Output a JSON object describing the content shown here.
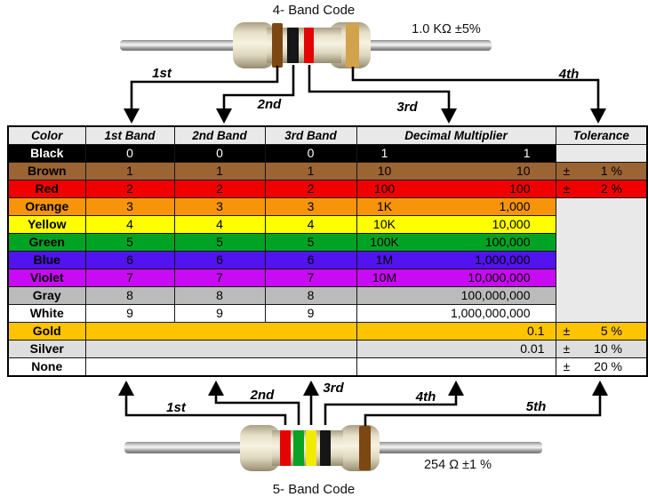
{
  "top": {
    "title": "4- Band Code",
    "value_label": "1.0 KΩ  ±5%",
    "band_names": [
      "brown",
      "black",
      "red",
      "gold"
    ],
    "arrow_labels": [
      "1st",
      "2nd",
      "3rd",
      "4th"
    ]
  },
  "bottom": {
    "title": "5- Band Code",
    "value_label": "254 Ω  ±1 %",
    "band_names": [
      "red",
      "green",
      "yellow",
      "black",
      "brown"
    ],
    "arrow_labels": [
      "1st",
      "2nd",
      "3rd",
      "4th",
      "5th"
    ]
  },
  "table": {
    "headers": [
      "Color",
      "1st Band",
      "2nd Band",
      "3rd Band",
      "Decimal Multiplier",
      "Tolerance"
    ],
    "rows": [
      {
        "name": "Black",
        "bg": "#000000",
        "fg": "#ffffff",
        "bands": [
          "0",
          "0",
          "0"
        ],
        "mult_abbr": "1",
        "mult_full": "1",
        "tolerance": {
          "kind": "empty"
        }
      },
      {
        "name": "Brown",
        "bg": "#9b6433",
        "fg": "#000000",
        "bands": [
          "1",
          "1",
          "1"
        ],
        "mult_abbr": "10",
        "mult_full": "10",
        "tolerance": {
          "kind": "value",
          "sign": "±",
          "value": "1 %"
        }
      },
      {
        "name": "Red",
        "bg": "#f00000",
        "fg": "#000000",
        "bands": [
          "2",
          "2",
          "2"
        ],
        "mult_abbr": "100",
        "mult_full": "100",
        "tolerance": {
          "kind": "value",
          "sign": "±",
          "value": "2 %"
        }
      },
      {
        "name": "Orange",
        "bg": "#f8940a",
        "fg": "#000000",
        "bands": [
          "3",
          "3",
          "3"
        ],
        "mult_abbr": "1K",
        "mult_full": "1,000",
        "tolerance": {
          "kind": "merged_empty",
          "rowspan": 7
        }
      },
      {
        "name": "Yellow",
        "bg": "#ffff00",
        "fg": "#000000",
        "bands": [
          "4",
          "4",
          "4"
        ],
        "mult_abbr": "10K",
        "mult_full": "10,000",
        "tolerance": {
          "kind": "skip"
        }
      },
      {
        "name": "Green",
        "bg": "#00a323",
        "fg": "#000000",
        "bands": [
          "5",
          "5",
          "5"
        ],
        "mult_abbr": "100K",
        "mult_full": "100,000",
        "tolerance": {
          "kind": "skip"
        }
      },
      {
        "name": "Blue",
        "bg": "#5213ee",
        "fg": "#000000",
        "bands": [
          "6",
          "6",
          "6"
        ],
        "mult_abbr": "1M",
        "mult_full": "1,000,000",
        "tolerance": {
          "kind": "skip"
        }
      },
      {
        "name": "Violet",
        "bg": "#c70bf2",
        "fg": "#000000",
        "bands": [
          "7",
          "7",
          "7"
        ],
        "mult_abbr": "10M",
        "mult_full": "10,000,000",
        "tolerance": {
          "kind": "skip"
        }
      },
      {
        "name": "Gray",
        "bg": "#bbbbbb",
        "fg": "#000000",
        "bands": [
          "8",
          "8",
          "8"
        ],
        "mult_abbr": "",
        "mult_full": "100,000,000",
        "tolerance": {
          "kind": "skip"
        }
      },
      {
        "name": "White",
        "bg": "#ffffff",
        "fg": "#000000",
        "bands": [
          "9",
          "9",
          "9"
        ],
        "mult_abbr": "",
        "mult_full": "1,000,000,000",
        "tolerance": {
          "kind": "skip"
        }
      },
      {
        "name": "Gold",
        "bg": "#ffc400",
        "fg": "#000000",
        "bands": null,
        "mult_abbr": "",
        "mult_full": "0.1",
        "tolerance": {
          "kind": "value",
          "sign": "±",
          "value": "5 %"
        }
      },
      {
        "name": "Silver",
        "bg": "#dedede",
        "fg": "#000000",
        "bands": null,
        "mult_abbr": "",
        "mult_full": "0.01",
        "tolerance": {
          "kind": "value",
          "sign": "±",
          "value": "10 %"
        }
      },
      {
        "name": "None",
        "bg": "#ffffff",
        "fg": "#000000",
        "bands": null,
        "mult_abbr": "",
        "mult_full": "",
        "tolerance": {
          "kind": "value",
          "sign": "±",
          "value": "20 %"
        }
      }
    ]
  },
  "colors": {
    "neutral_cell": "#e9e9e9",
    "header_bg": "#e9e9e9",
    "band_brown": "#7c4712",
    "band_black": "#161616",
    "band_red": "#e40404",
    "band_gold": "#d2a24c",
    "band_green": "#0ba125",
    "band_yellow": "#f2ea00",
    "wire_gray": "#9e9e9e",
    "body_cream": "#ece5d0"
  }
}
